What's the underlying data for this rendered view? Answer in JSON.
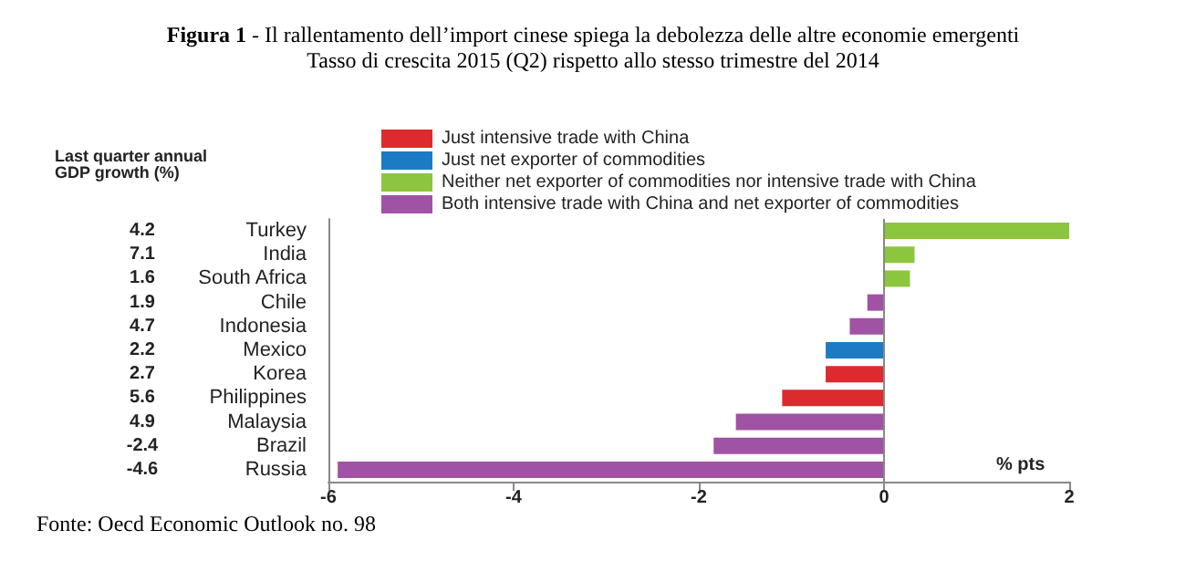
{
  "chart_data": {
    "type": "bar",
    "orientation": "horizontal",
    "stacked": true,
    "title": "Figura 1 - Il rallentamento dell’import cinese spiega la debolezza delle altre economie emergenti",
    "subtitle": "Tasso di crescita 2015 (Q2) rispetto allo stesso trimestre del 2014",
    "ylabel": "Last quarter annual GDP growth (%)",
    "xlabel": "% pts",
    "categories": [
      "Turkey",
      "India",
      "South Africa",
      "Chile",
      "Indonesia",
      "Mexico",
      "Korea",
      "Philippines",
      "Malaysia",
      "Brazil",
      "Russia"
    ],
    "series": [
      {
        "name": "Just intensive trade with China",
        "color": "#dd2a2f",
        "values": [
          null,
          null,
          null,
          null,
          null,
          null,
          -0.63,
          -1.1,
          null,
          null,
          null
        ]
      },
      {
        "name": "Just net exporter of commodities",
        "color": "#1c7bc4",
        "values": [
          null,
          null,
          null,
          null,
          null,
          -0.63,
          null,
          null,
          null,
          null,
          null
        ]
      },
      {
        "name": "Neither net exporter of commodities nor intensive trade with China",
        "color": "#8cc63f",
        "values": [
          2.0,
          0.33,
          0.28,
          null,
          null,
          null,
          null,
          null,
          null,
          null,
          null
        ]
      },
      {
        "name": "Both intensive trade with China and net exporter of commodities",
        "color": "#a052a4",
        "values": [
          null,
          null,
          null,
          -0.18,
          -0.37,
          null,
          null,
          null,
          -1.6,
          -1.84,
          -5.9
        ]
      }
    ],
    "xlim": [
      -6,
      2
    ],
    "xticks": [
      -6,
      -4,
      -2,
      0,
      2
    ],
    "legend": "top",
    "ref_lines": [
      {
        "axis": "x",
        "value": 0,
        "color": "#888888"
      }
    ],
    "annotations": [
      "4.2",
      "7.1",
      "1.6",
      "1.9",
      "4.7",
      "2.2",
      "2.7",
      "5.6",
      "4.9",
      "-2.4",
      "-4.6",
      "Fonte: Oecd Economic Outlook no. 98"
    ]
  }
}
